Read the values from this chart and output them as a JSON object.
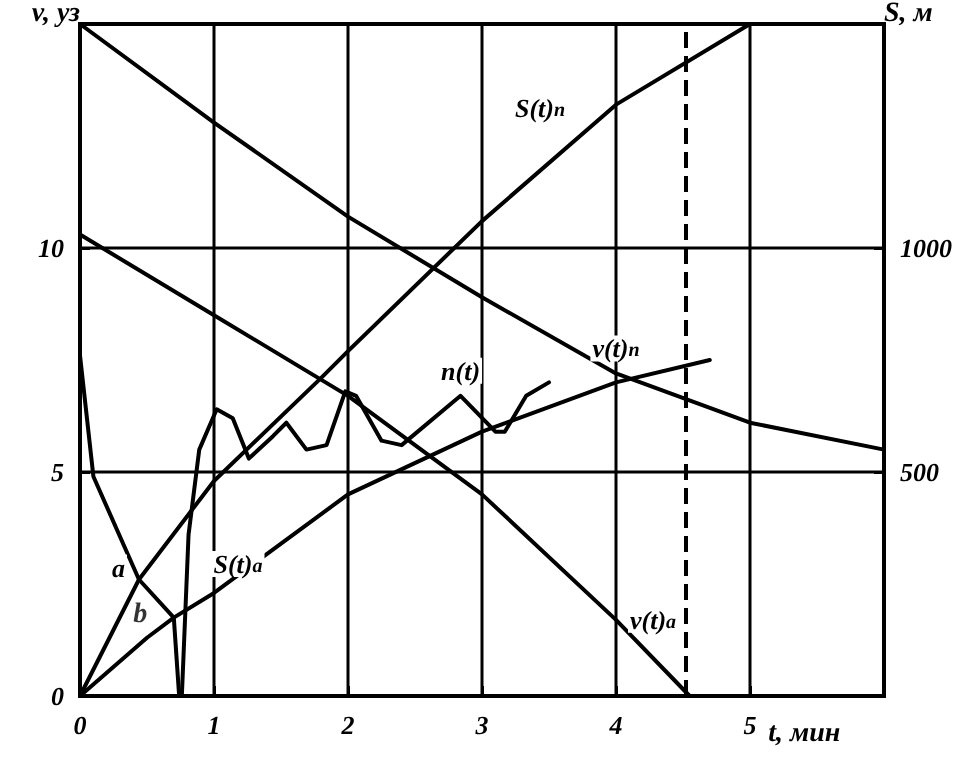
{
  "chart_data": {
    "type": "line",
    "xlabel": "t, мин",
    "ylabel": "v, уз",
    "y2label": "S, м",
    "xlim": [
      0,
      6
    ],
    "xticks": [
      0,
      1,
      2,
      3,
      4,
      5
    ],
    "ylim": [
      0,
      15
    ],
    "yticks": [
      0,
      5,
      10
    ],
    "y2lim": [
      0,
      1500
    ],
    "y2ticks": [
      500,
      1000
    ],
    "grid": true,
    "legend": false,
    "marker": "none",
    "line_style": "solid",
    "series": [
      {
        "name": "v(t)$_{п}$",
        "color": "#000000",
        "x": [
          0,
          1,
          2,
          3,
          4,
          5,
          6
        ],
        "values": [
          15,
          12.8,
          10.7,
          8.9,
          7.2,
          6.1,
          5.5
        ]
      },
      {
        "name": "v(t)$_{а}$",
        "color": "#000000",
        "x": [
          0,
          1,
          2,
          3,
          4,
          4.55
        ],
        "values": [
          10.3,
          8.5,
          6.7,
          4.5,
          1.7,
          0
        ]
      },
      {
        "name": "S(t)$_{п}$",
        "color": "#000000",
        "axis": "y2",
        "x": [
          0,
          0.44,
          1,
          1.8,
          2,
          3,
          4,
          5
        ],
        "values": [
          0,
          260,
          480,
          710,
          770,
          1060,
          1320,
          1500
        ]
      },
      {
        "name": "S(t)$_{а}$",
        "color": "#000000",
        "axis": "y2",
        "x": [
          0,
          0.5,
          0.7,
          1,
          2,
          3,
          4,
          4.7
        ],
        "values": [
          0,
          130,
          175,
          230,
          450,
          590,
          700,
          750
        ]
      },
      {
        "name": "n(t)",
        "color": "#000000",
        "x": [
          0.76,
          0.81,
          0.89,
          1.02,
          1.14,
          1.26,
          1.44,
          1.54,
          1.69,
          1.84,
          1.98,
          2.06,
          2.25,
          2.4,
          2.84,
          3.1,
          3.17,
          3.33,
          3.5
        ],
        "values": [
          0,
          3.6,
          5.5,
          6.4,
          6.2,
          5.3,
          5.8,
          6.1,
          5.5,
          5.6,
          6.8,
          6.7,
          5.7,
          5.6,
          6.7,
          5.9,
          5.9,
          6.7,
          7.0
        ]
      },
      {
        "name": "a",
        "color": "#000000",
        "x": [
          0,
          0.1,
          0.44,
          0.7,
          0.74
        ],
        "values": [
          7.6,
          4.9,
          2.6,
          1.75,
          0
        ]
      }
    ],
    "annotations": [
      {
        "text": "b",
        "x": 0.45,
        "y": 1.8
      }
    ],
    "ref_lines": [
      {
        "axis": "x",
        "value": 4.52,
        "color": "#000000",
        "line_style": "dashed"
      }
    ]
  }
}
